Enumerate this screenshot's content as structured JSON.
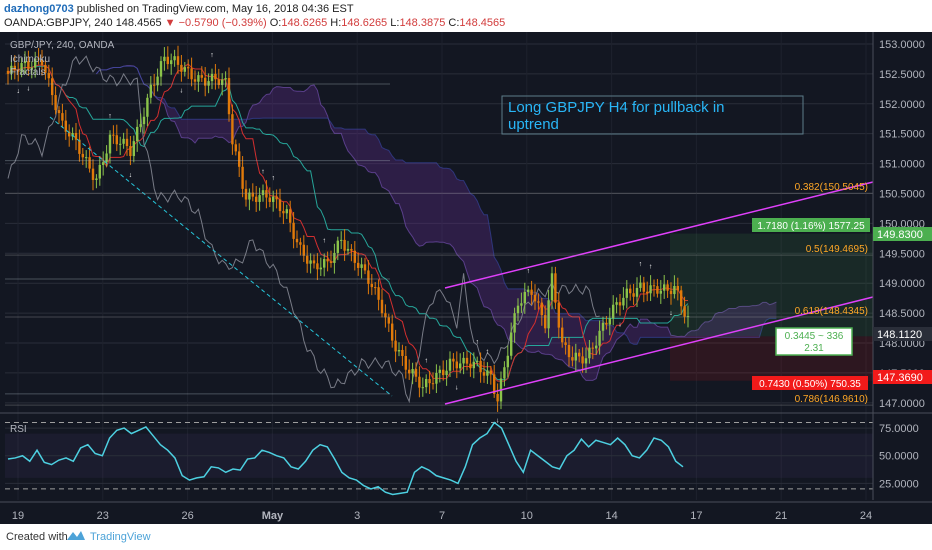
{
  "header": {
    "user": "dazhong0703",
    "published_text": "published on TradingView.com, May 16, 2018 04:36 EST",
    "symbol": "OANDA:GBPJPY, 240",
    "last": "148.4565",
    "change": "▼ −0.5790 (−0.39%)",
    "o_label": "O:",
    "o_value": "148.6265",
    "h_label": "H:",
    "h_value": "148.6265",
    "l_label": "L:",
    "l_value": "148.3875",
    "c_label": "C:",
    "c_value": "148.4565"
  },
  "legend": {
    "title": "GBP/JPY, 240, OANDA",
    "ind1": "Ichimoku",
    "ind2": "Fractals"
  },
  "annotation": {
    "line1": "Long GBPJPY H4 for pullback in",
    "line2": "uptrend"
  },
  "fib_labels": [
    {
      "text": "0.382(150.5045)",
      "price": 150.5045
    },
    {
      "text": "0.5(149.4695)",
      "price": 149.4695
    },
    {
      "text": "0.618(148.4345)",
      "price": 148.4345
    },
    {
      "text": "0.786(146.9610)",
      "price": 146.961
    }
  ],
  "position": {
    "target_label": "1.7180 (1.16%) 1577.25",
    "stop_label": "0.7430 (0.50%) 750.35",
    "ratio_label": "0.3445 ~ 336",
    "ratio_value": "2.31",
    "target_price": "149.8300",
    "entry_price": "148.1120",
    "stop_price": "147.3690"
  },
  "colors": {
    "background": "#131722",
    "up": "#8bc34a",
    "down": "#e07a0a",
    "channel": "#e040fb",
    "rsi": "#4dd0e1",
    "target": "#4caf50",
    "stop": "#f21a1a",
    "annotation_text": "#29b6f6"
  },
  "rsi_label": "RSI",
  "footer": {
    "created": "Created with",
    "brand": "TradingView"
  },
  "chart_data": [
    {
      "type": "candlestick",
      "title": "GBP/JPY, 240, OANDA",
      "x_ticks": [
        "19",
        "23",
        "26",
        "May",
        "3",
        "7",
        "10",
        "14",
        "17",
        "21",
        "24"
      ],
      "y_ticks": [
        "153.0000",
        "152.5000",
        "152.0000",
        "151.5000",
        "151.0000",
        "150.5000",
        "150.0000",
        "149.5000",
        "149.0000",
        "148.5000",
        "148.0000",
        "147.5000",
        "147.0000"
      ],
      "ylim": [
        146.88,
        153.2
      ],
      "close_path": [
        [
          0,
          152.5
        ],
        [
          6,
          152.6
        ],
        [
          10,
          152.8
        ],
        [
          16,
          151.6
        ],
        [
          20,
          151.3
        ],
        [
          26,
          150.8
        ],
        [
          30,
          151.4
        ],
        [
          36,
          151.2
        ],
        [
          42,
          152.3
        ],
        [
          46,
          152.7
        ],
        [
          52,
          152.6
        ],
        [
          58,
          152.4
        ],
        [
          64,
          152.3
        ],
        [
          66,
          151.4
        ],
        [
          70,
          150.5
        ],
        [
          76,
          150.4
        ],
        [
          82,
          150.2
        ],
        [
          86,
          149.6
        ],
        [
          90,
          149.2
        ],
        [
          94,
          149.3
        ],
        [
          98,
          149.8
        ],
        [
          102,
          149.4
        ],
        [
          106,
          149.0
        ],
        [
          110,
          148.6
        ],
        [
          114,
          148.0
        ],
        [
          118,
          147.5
        ],
        [
          122,
          147.2
        ],
        [
          126,
          147.5
        ],
        [
          130,
          147.7
        ],
        [
          134,
          147.6
        ],
        [
          138,
          147.6
        ],
        [
          142,
          147.5
        ],
        [
          144,
          147.1
        ],
        [
          146,
          147.6
        ],
        [
          150,
          148.6
        ],
        [
          154,
          148.9
        ],
        [
          158,
          148.4
        ],
        [
          160,
          149.1
        ],
        [
          163,
          147.9
        ],
        [
          166,
          147.7
        ],
        [
          170,
          147.8
        ],
        [
          174,
          148.2
        ],
        [
          178,
          148.5
        ],
        [
          182,
          148.8
        ],
        [
          186,
          149.0
        ],
        [
          190,
          148.9
        ],
        [
          194,
          148.8
        ],
        [
          196,
          148.9
        ],
        [
          200,
          148.45
        ]
      ],
      "fractal_marks": [
        "↑",
        "↓"
      ]
    },
    {
      "type": "line",
      "title": "RSI",
      "y_ticks": [
        "75.0000",
        "50.0000",
        "25.0000"
      ],
      "ylim": [
        10,
        85
      ],
      "values": [
        47,
        48,
        50,
        45,
        55,
        44,
        42,
        46,
        48,
        45,
        57,
        60,
        52,
        50,
        66,
        73,
        75,
        70,
        73,
        76,
        68,
        60,
        55,
        48,
        32,
        28,
        30,
        31,
        40,
        39,
        35,
        38,
        37,
        47,
        48,
        55,
        53,
        50,
        48,
        40,
        38,
        45,
        55,
        60,
        58,
        47,
        35,
        30,
        28,
        23,
        20,
        22,
        17,
        15,
        16,
        17,
        35,
        40,
        37,
        32,
        30,
        28,
        25,
        40,
        60,
        66,
        70,
        80,
        75,
        60,
        45,
        35,
        55,
        50,
        45,
        40,
        38,
        50,
        55,
        65,
        58,
        64,
        62,
        60,
        66,
        60,
        50,
        48,
        55,
        66,
        64,
        58,
        45,
        40
      ]
    }
  ]
}
